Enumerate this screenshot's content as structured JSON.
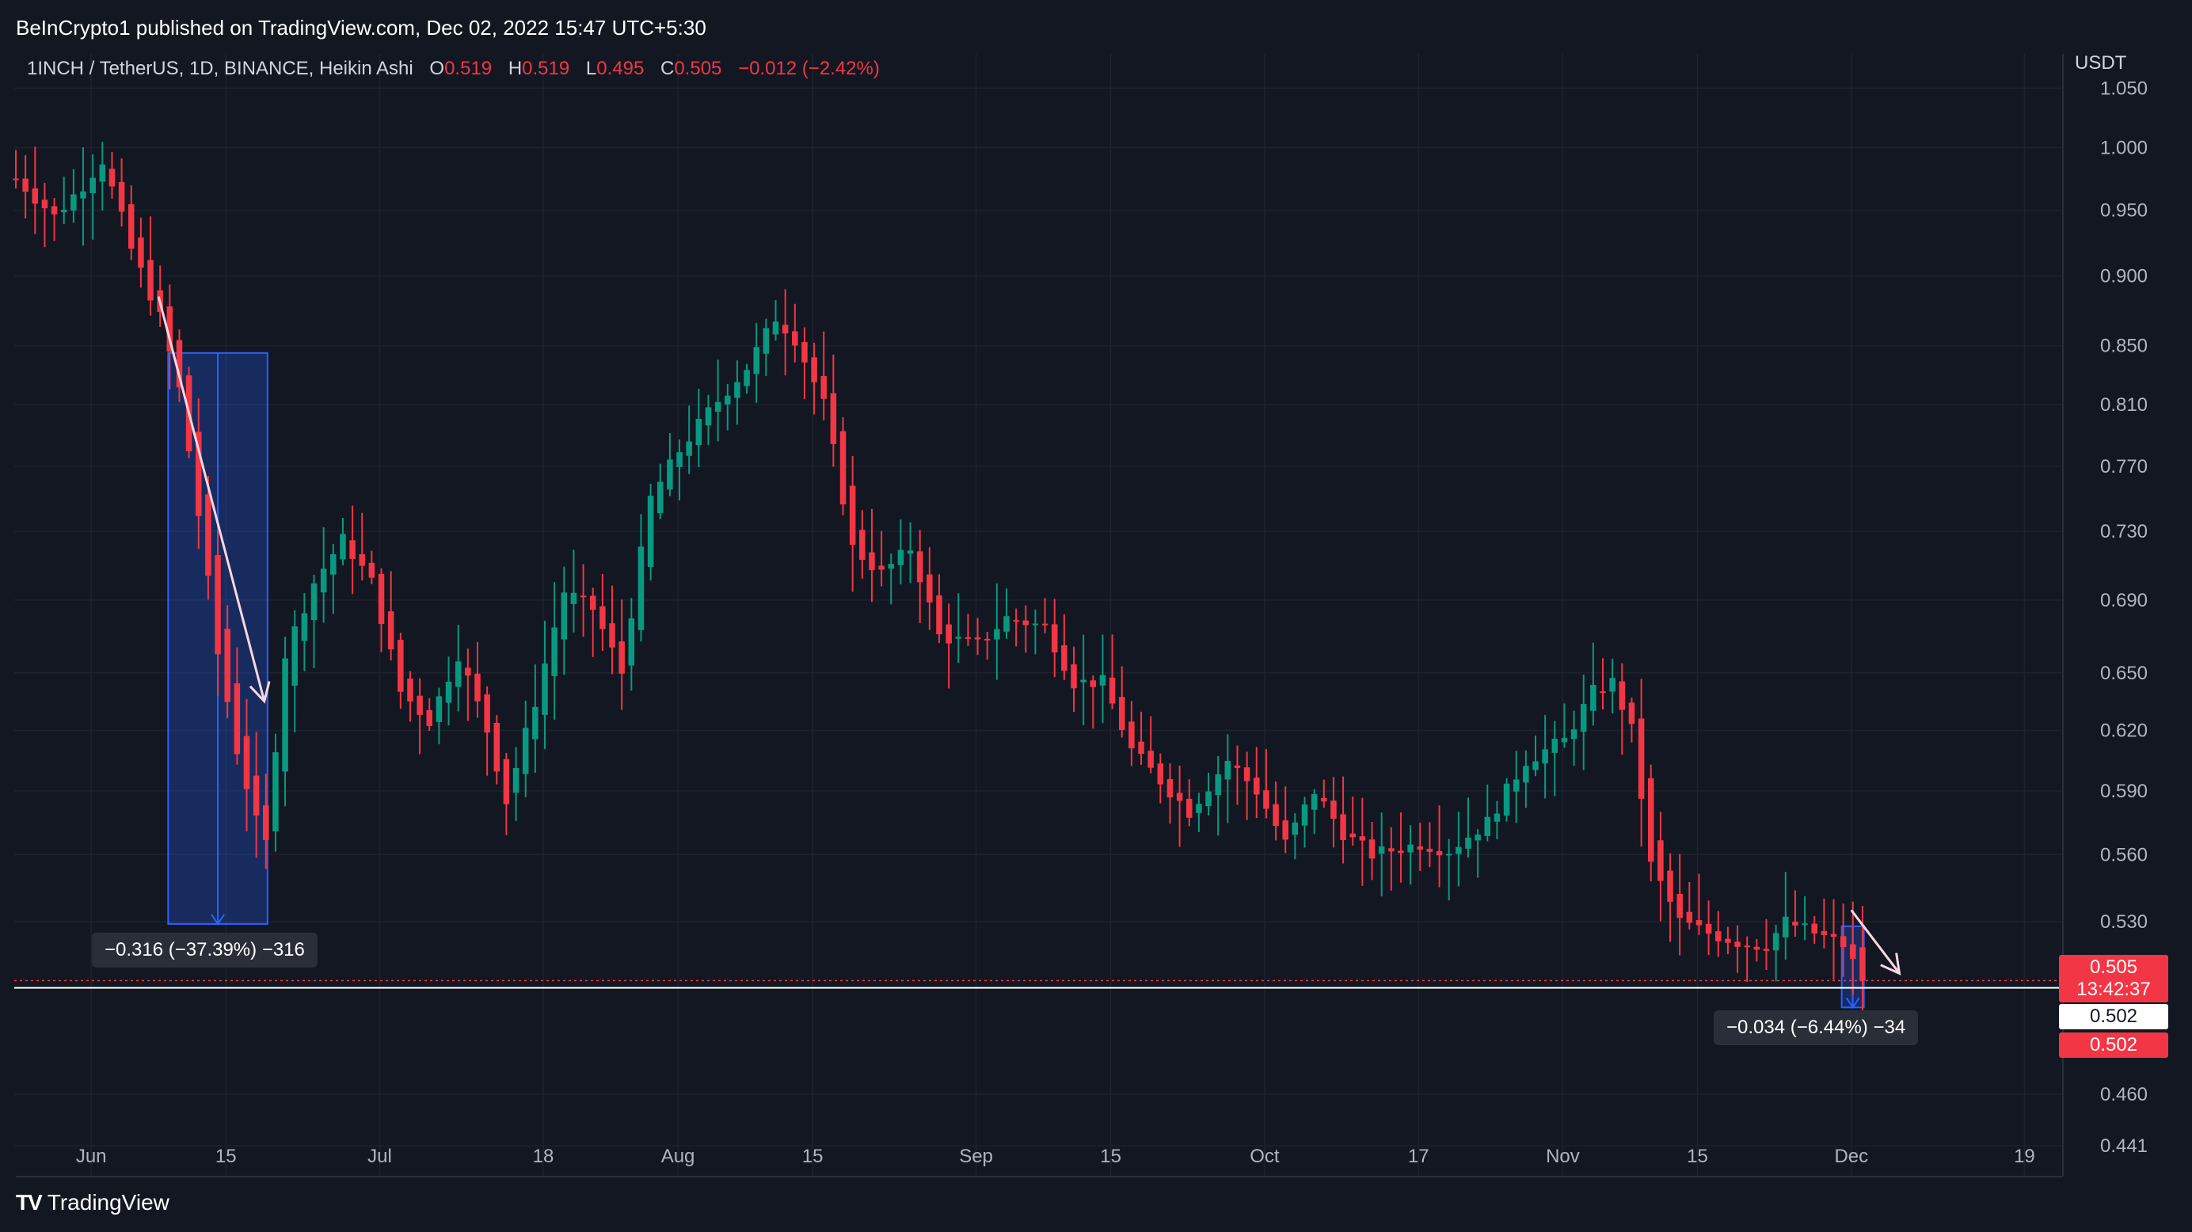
{
  "header": {
    "publisher_line": "BeInCrypto1 published on TradingView.com, Dec 02, 2022 15:47 UTC+5:30",
    "currency": "USDT"
  },
  "legend": {
    "symbol": "1INCH / TetherUS, 1D, BINANCE, Heikin Ashi",
    "o_label": "O",
    "o_value": "0.519",
    "h_label": "H",
    "h_value": "0.519",
    "l_label": "L",
    "l_value": "0.495",
    "c_label": "C",
    "c_value": "0.505",
    "change": "−0.012 (−2.42%)"
  },
  "footer": {
    "logo_mark": "TV",
    "logo_text": "TradingView"
  },
  "colors": {
    "up": "#089981",
    "down": "#f23645",
    "background": "#131722",
    "grid": "#1e222d",
    "axis_text": "#b2b5be",
    "measure_fill": "#2962ff"
  },
  "chart_data": {
    "type": "candlestick",
    "style": "Heikin Ashi",
    "timeframe": "1D",
    "exchange": "BINANCE",
    "pair": "1INCH / TetherUS",
    "x_range": [
      "2022-05-24",
      "2022-12-23"
    ],
    "y_range": [
      0.43,
      1.08
    ],
    "y_scale": "log",
    "grid": true,
    "y_ticks": [
      "1.050",
      "1.000",
      "0.950",
      "0.900",
      "0.850",
      "0.810",
      "0.770",
      "0.730",
      "0.690",
      "0.650",
      "0.620",
      "0.590",
      "0.560",
      "0.530",
      "0.460",
      "0.441"
    ],
    "x_ticks": [
      {
        "date": "2022-06-01",
        "label": "Jun"
      },
      {
        "date": "2022-06-15",
        "label": "15"
      },
      {
        "date": "2022-07-01",
        "label": "Jul"
      },
      {
        "date": "2022-07-18",
        "label": "18"
      },
      {
        "date": "2022-08-01",
        "label": "Aug"
      },
      {
        "date": "2022-08-15",
        "label": "15"
      },
      {
        "date": "2022-09-01",
        "label": "Sep"
      },
      {
        "date": "2022-09-15",
        "label": "15"
      },
      {
        "date": "2022-10-01",
        "label": "Oct"
      },
      {
        "date": "2022-10-17",
        "label": "17"
      },
      {
        "date": "2022-11-01",
        "label": "Nov"
      },
      {
        "date": "2022-11-15",
        "label": "15"
      },
      {
        "date": "2022-12-01",
        "label": "Dec"
      },
      {
        "date": "2022-12-19",
        "label": "19"
      }
    ],
    "price_labels": {
      "last_price": "0.505",
      "countdown": "13:42:37",
      "level_white": "0.502",
      "level_red": "0.502"
    },
    "horizontal_line": 0.502,
    "close_line": 0.505,
    "measurements": [
      {
        "start_date": "2022-06-09",
        "end_date": "2022-06-19",
        "top": 0.845,
        "bottom": 0.529,
        "label": "−0.316 (−37.39%) −316"
      },
      {
        "start_date": "2022-11-30",
        "end_date": "2022-12-01",
        "top": 0.528,
        "bottom": 0.494,
        "label": "−0.034 (−6.44%) −34"
      }
    ],
    "arrows": [
      {
        "from_date": "2022-06-08",
        "from_price": 0.885,
        "to_date": "2022-06-19",
        "to_price": 0.635
      },
      {
        "from_date": "2022-12-01",
        "from_price": 0.535,
        "to_date": "2022-12-06",
        "to_price": 0.508
      }
    ],
    "anchor_path": [
      [
        "2022-05-24",
        0.975
      ],
      [
        "2022-05-28",
        0.945
      ],
      [
        "2022-05-31",
        0.97
      ],
      [
        "2022-06-02",
        0.99
      ],
      [
        "2022-06-05",
        0.92
      ],
      [
        "2022-06-08",
        0.87
      ],
      [
        "2022-06-10",
        0.82
      ],
      [
        "2022-06-12",
        0.74
      ],
      [
        "2022-06-14",
        0.66
      ],
      [
        "2022-06-16",
        0.61
      ],
      [
        "2022-06-18",
        0.575
      ],
      [
        "2022-06-19",
        0.565
      ],
      [
        "2022-06-21",
        0.66
      ],
      [
        "2022-06-24",
        0.7
      ],
      [
        "2022-06-27",
        0.725
      ],
      [
        "2022-06-30",
        0.7
      ],
      [
        "2022-07-03",
        0.64
      ],
      [
        "2022-07-06",
        0.625
      ],
      [
        "2022-07-09",
        0.66
      ],
      [
        "2022-07-12",
        0.62
      ],
      [
        "2022-07-14",
        0.585
      ],
      [
        "2022-07-17",
        0.635
      ],
      [
        "2022-07-20",
        0.695
      ],
      [
        "2022-07-23",
        0.685
      ],
      [
        "2022-07-26",
        0.65
      ],
      [
        "2022-07-29",
        0.75
      ],
      [
        "2022-08-01",
        0.78
      ],
      [
        "2022-08-04",
        0.805
      ],
      [
        "2022-08-08",
        0.835
      ],
      [
        "2022-08-11",
        0.87
      ],
      [
        "2022-08-13",
        0.855
      ],
      [
        "2022-08-16",
        0.81
      ],
      [
        "2022-08-19",
        0.72
      ],
      [
        "2022-08-22",
        0.705
      ],
      [
        "2022-08-25",
        0.72
      ],
      [
        "2022-08-28",
        0.67
      ],
      [
        "2022-09-01",
        0.665
      ],
      [
        "2022-09-04",
        0.68
      ],
      [
        "2022-09-08",
        0.675
      ],
      [
        "2022-09-11",
        0.645
      ],
      [
        "2022-09-14",
        0.645
      ],
      [
        "2022-09-17",
        0.61
      ],
      [
        "2022-09-20",
        0.595
      ],
      [
        "2022-09-23",
        0.58
      ],
      [
        "2022-09-27",
        0.605
      ],
      [
        "2022-09-30",
        0.59
      ],
      [
        "2022-10-03",
        0.565
      ],
      [
        "2022-10-06",
        0.59
      ],
      [
        "2022-10-09",
        0.57
      ],
      [
        "2022-10-12",
        0.56
      ],
      [
        "2022-10-17",
        0.565
      ],
      [
        "2022-10-20",
        0.562
      ],
      [
        "2022-10-24",
        0.575
      ],
      [
        "2022-10-28",
        0.605
      ],
      [
        "2022-11-01",
        0.615
      ],
      [
        "2022-11-04",
        0.64
      ],
      [
        "2022-11-06",
        0.645
      ],
      [
        "2022-11-08",
        0.62
      ],
      [
        "2022-11-10",
        0.555
      ],
      [
        "2022-11-13",
        0.53
      ],
      [
        "2022-11-16",
        0.525
      ],
      [
        "2022-11-20",
        0.52
      ],
      [
        "2022-11-22",
        0.52
      ],
      [
        "2022-11-24",
        0.53
      ],
      [
        "2022-11-27",
        0.525
      ],
      [
        "2022-11-30",
        0.52
      ],
      [
        "2022-12-02",
        0.505
      ]
    ]
  }
}
